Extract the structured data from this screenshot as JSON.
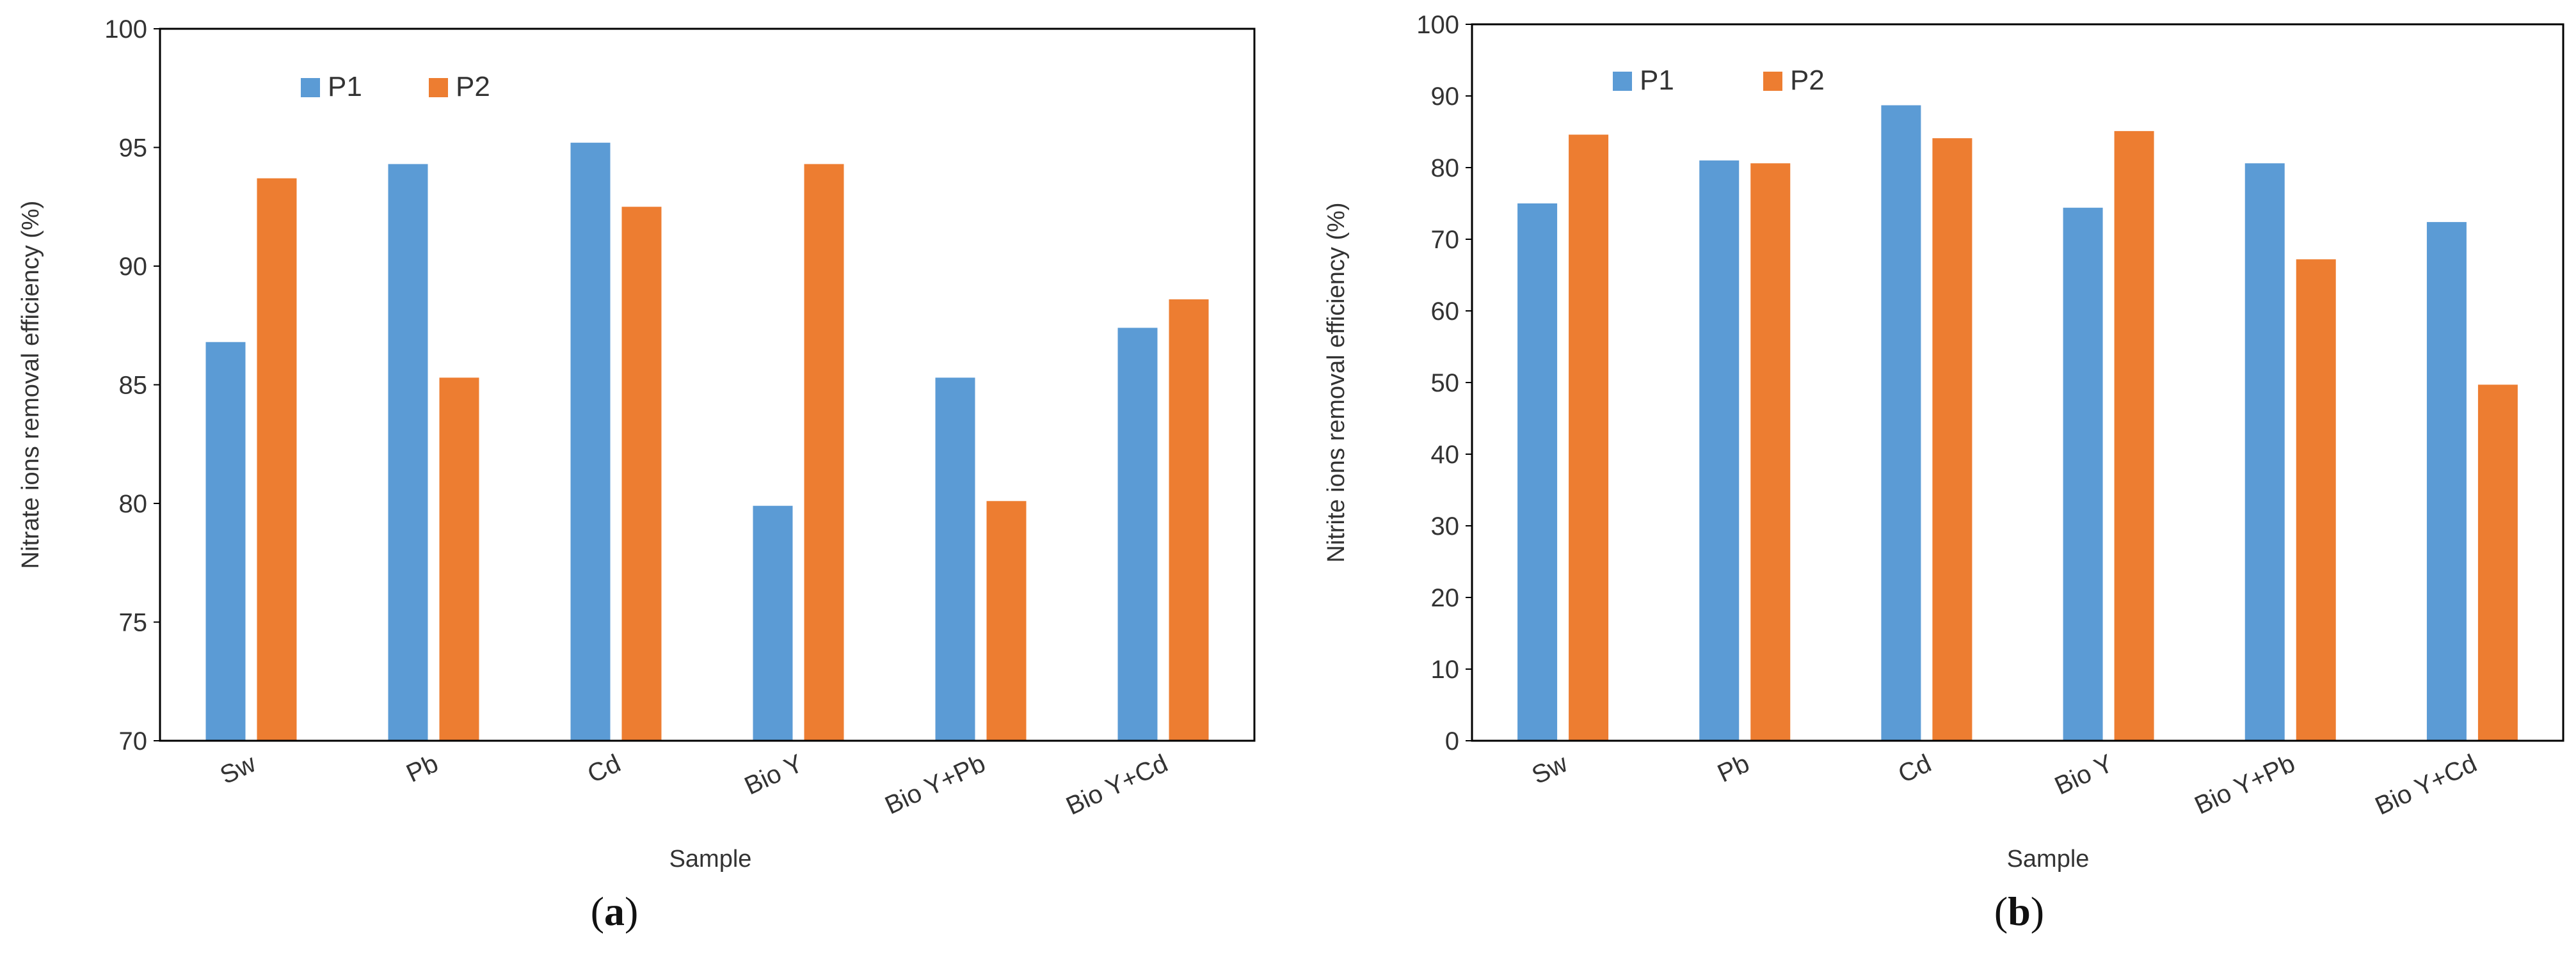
{
  "chart_data": [
    {
      "type": "bar",
      "panel_label": "a",
      "categories": [
        "Sw",
        "Pb",
        "Cd",
        "Bio Y",
        "Bio Y+Pb",
        "Bio Y+Cd"
      ],
      "series": [
        {
          "name": "P1",
          "values": [
            86.8,
            94.3,
            95.2,
            79.9,
            85.3,
            87.4
          ]
        },
        {
          "name": "P2",
          "values": [
            93.7,
            85.3,
            92.5,
            94.3,
            80.1,
            88.6
          ]
        }
      ],
      "xlabel": "Sample",
      "ylabel": "Nitrate ions removal efficiency (%)",
      "ylim": [
        70,
        100
      ],
      "yticks": [
        70,
        75,
        80,
        85,
        90,
        95,
        100
      ],
      "legend_position": "top-left",
      "grid": false
    },
    {
      "type": "bar",
      "panel_label": "b",
      "categories": [
        "Sw",
        "Pb",
        "Cd",
        "Bio Y",
        "Bio Y+Pb",
        "Bio Y+Cd"
      ],
      "series": [
        {
          "name": "P1",
          "values": [
            75.0,
            81.0,
            88.7,
            74.4,
            80.6,
            72.4
          ]
        },
        {
          "name": "P2",
          "values": [
            84.6,
            80.6,
            84.1,
            85.1,
            67.2,
            49.7
          ]
        }
      ],
      "xlabel": "Sample",
      "ylabel": "Nitrite ions removal efficiency (%)",
      "ylim": [
        0,
        100
      ],
      "yticks": [
        0,
        10,
        20,
        30,
        40,
        50,
        60,
        70,
        80,
        90,
        100
      ],
      "legend_position": "top-left",
      "grid": false
    }
  ],
  "colors": {
    "P1": "#5B9BD5",
    "P2": "#ED7D31",
    "axis": "#000000"
  }
}
